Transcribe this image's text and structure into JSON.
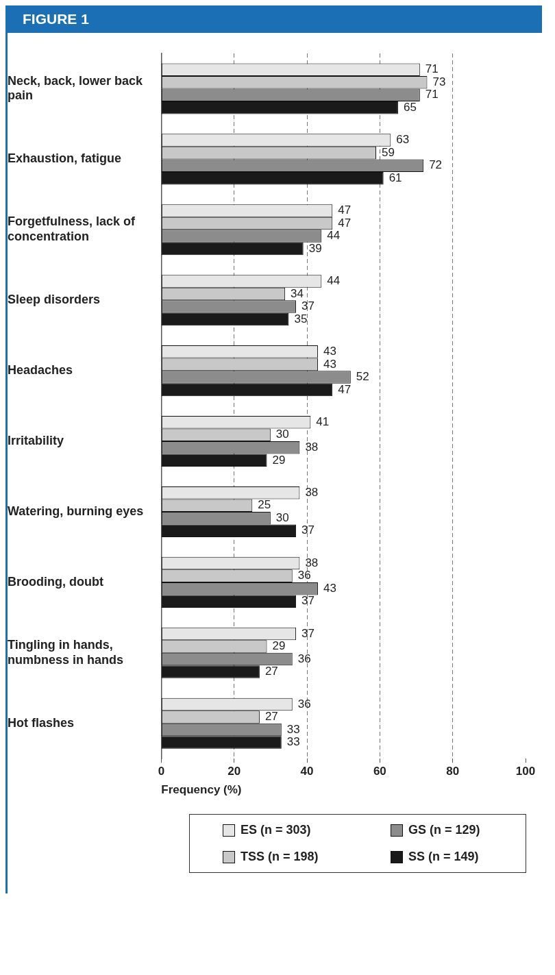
{
  "chart_data": {
    "type": "bar",
    "orientation": "horizontal",
    "title": "FIGURE 1",
    "xlabel": "Frequency (%)",
    "categories": [
      "Neck, back, lower back pain",
      "Exhaustion, fatigue",
      "Forgetfulness, lack of concentration",
      "Sleep disorders",
      "Headaches",
      "Irritability",
      "Watering, burning eyes",
      "Brooding, doubt",
      "Tingling in hands, numbness in hands",
      "Hot flashes"
    ],
    "series": [
      {
        "name": "ES (n = 303)",
        "color": "#e6e6e6",
        "values": [
          71,
          63,
          47,
          44,
          43,
          41,
          38,
          38,
          37,
          36
        ]
      },
      {
        "name": "TSS (n = 198)",
        "color": "#c8c8c8",
        "values": [
          73,
          59,
          47,
          34,
          43,
          30,
          25,
          36,
          29,
          27
        ]
      },
      {
        "name": "GS (n = 129)",
        "color": "#8c8c8c",
        "values": [
          71,
          72,
          44,
          37,
          52,
          38,
          30,
          43,
          36,
          33
        ]
      },
      {
        "name": "SS (n = 149)",
        "color": "#1a1a1a",
        "values": [
          65,
          61,
          39,
          35,
          47,
          29,
          37,
          37,
          27,
          33
        ]
      }
    ],
    "xlim": [
      0,
      100
    ],
    "xticks": [
      0,
      20,
      40,
      60,
      80,
      100
    ],
    "grid": "x",
    "data_labels": true,
    "legend": "bottom"
  }
}
